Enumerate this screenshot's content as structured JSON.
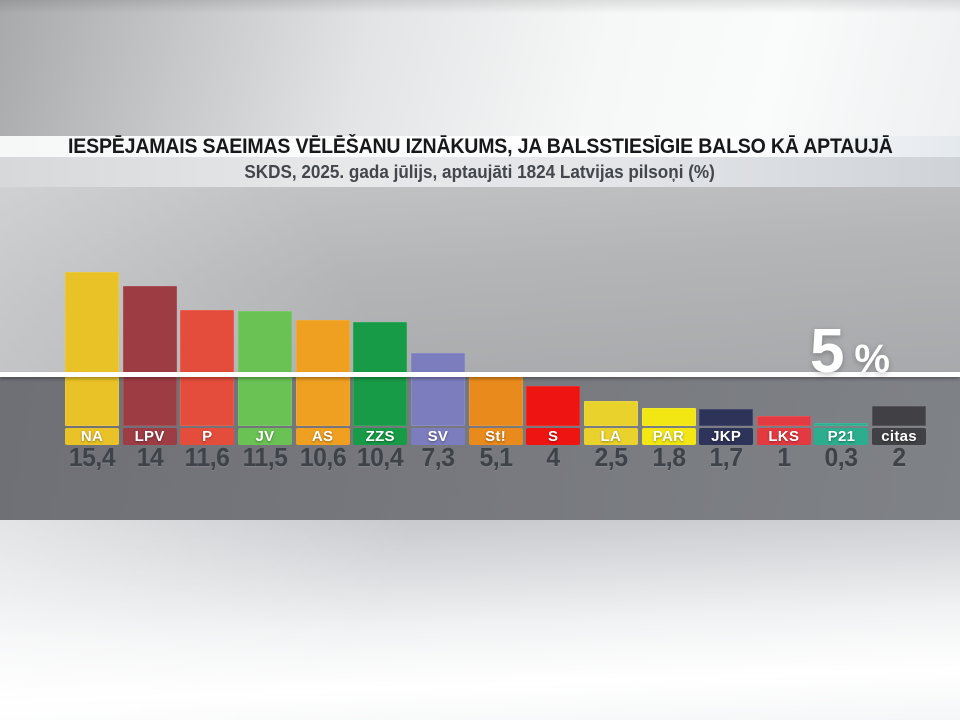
{
  "header": {
    "title": "IESPĒJAMAIS SAEIMAS VĒLĒŠANU IZNĀKUMS, JA BALSSTIESĪGIE BALSO KĀ APTAUJĀ",
    "subtitle": "SKDS, 2025. gada jūlijs, aptaujāti 1824 Latvijas pilsoņi (%)"
  },
  "threshold": {
    "value": 5,
    "label": "5",
    "unit": "%"
  },
  "colors": {
    "value_text": "#3e4249",
    "chip_text": "#ffffff",
    "threshold_line": "#ffffff",
    "below_threshold_band": "#76787d"
  },
  "chart_data": {
    "type": "bar",
    "title": "IESPĒJAMAIS SAEIMAS VĒLĒŠANU IZNĀKUMS, JA BALSSTIESĪGIE BALSO KĀ APTAUJĀ",
    "subtitle": "SKDS, 2025. gada jūlijs, aptaujāti 1824 Latvijas pilsoņi (%)",
    "unit": "%",
    "xlabel": "",
    "ylabel": "",
    "ylim": [
      0,
      17
    ],
    "grid": false,
    "legend_position": "none",
    "threshold_line": 5,
    "threshold_label": "5 %",
    "categories": [
      "NA",
      "LPV",
      "P",
      "JV",
      "AS",
      "ZZS",
      "SV",
      "St!",
      "S",
      "LA",
      "PAR",
      "JKP",
      "LKS",
      "P21",
      "citas"
    ],
    "values": [
      15.4,
      14,
      11.6,
      11.5,
      10.6,
      10.4,
      7.3,
      5.1,
      4,
      2.5,
      1.8,
      1.7,
      1,
      0.3,
      2
    ],
    "parties": [
      {
        "abbr": "NA",
        "value": 15.4,
        "display": "15,4",
        "color": "#E9C227"
      },
      {
        "abbr": "LPV",
        "value": 14,
        "display": "14",
        "color": "#9E3C44"
      },
      {
        "abbr": "P",
        "value": 11.6,
        "display": "11,6",
        "color": "#E44C3B"
      },
      {
        "abbr": "JV",
        "value": 11.5,
        "display": "11,5",
        "color": "#6AC154"
      },
      {
        "abbr": "AS",
        "value": 10.6,
        "display": "10,6",
        "color": "#EFA021"
      },
      {
        "abbr": "ZZS",
        "value": 10.4,
        "display": "10,4",
        "color": "#189B46"
      },
      {
        "abbr": "SV",
        "value": 7.3,
        "display": "7,3",
        "color": "#7B7DBE"
      },
      {
        "abbr": "St!",
        "value": 5.1,
        "display": "5,1",
        "color": "#E98A1C"
      },
      {
        "abbr": "S",
        "value": 4,
        "display": "4",
        "color": "#EE1412"
      },
      {
        "abbr": "LA",
        "value": 2.5,
        "display": "2,5",
        "color": "#E9D22B"
      },
      {
        "abbr": "PAR",
        "value": 1.8,
        "display": "1,8",
        "color": "#F2E713"
      },
      {
        "abbr": "JKP",
        "value": 1.7,
        "display": "1,7",
        "color": "#2E3359"
      },
      {
        "abbr": "LKS",
        "value": 1,
        "display": "1",
        "color": "#E23A40"
      },
      {
        "abbr": "P21",
        "value": 0.3,
        "display": "0,3",
        "color": "#2BAE8D"
      },
      {
        "abbr": "citas",
        "value": 2,
        "display": "2",
        "color": "#414145"
      }
    ]
  }
}
